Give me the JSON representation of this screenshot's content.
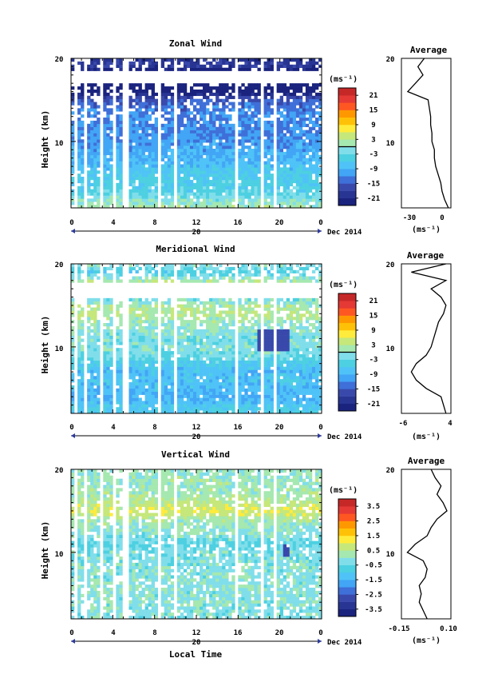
{
  "figure": {
    "x_axis_label": "Local Time",
    "date_label": "Dec 2014",
    "day_label": "20",
    "x_ticks": [
      "0",
      "4",
      "8",
      "12",
      "16",
      "20",
      "0"
    ],
    "y_axis_label": "Height (km)",
    "y_ticks": [
      "10",
      "20"
    ],
    "unit_label": "(ms⁻¹)",
    "avg_title": "Average",
    "colors": [
      "#1a237e",
      "#283593",
      "#3949ab",
      "#3f6fd8",
      "#42a5f5",
      "#4fc3f7",
      "#4dd0e1",
      "#80deea",
      "#a5e8b0",
      "#c6e77a",
      "#ffeb3b",
      "#ffc107",
      "#ff9800",
      "#ff5722",
      "#e53935",
      "#c62828"
    ]
  },
  "chart_data": [
    {
      "type": "heatmap",
      "title": "Zonal Wind",
      "xlabel": "Local Time",
      "ylabel": "Height (km)",
      "xlim": [
        0,
        24
      ],
      "ylim": [
        2,
        20
      ],
      "data_gap_above_km": 17,
      "colorbar": {
        "ticks": [
          "21",
          "15",
          "9",
          "3",
          "-3",
          "-9",
          "-15",
          "-21"
        ],
        "range": [
          -24,
          24
        ],
        "zero_line_value": 0
      },
      "profile_knots": [
        [
          2,
          2
        ],
        [
          4,
          -4
        ],
        [
          6,
          -6
        ],
        [
          8,
          -9
        ],
        [
          10,
          -11
        ],
        [
          11.5,
          -12
        ],
        [
          13,
          -12
        ],
        [
          14,
          -13
        ],
        [
          15,
          -15
        ],
        [
          15.8,
          -22
        ],
        [
          16.5,
          -26
        ],
        [
          17.5,
          -18
        ],
        [
          18.5,
          -24
        ],
        [
          19.2,
          -18
        ],
        [
          20,
          -20
        ]
      ],
      "average_profile": {
        "title": "Average",
        "xticks": [
          "-30",
          "0"
        ],
        "xlim": [
          -35,
          4
        ],
        "ylim": [
          2,
          20
        ],
        "xlabel": "(ms⁻¹)",
        "height_km": [
          2,
          3,
          4,
          5,
          6,
          7,
          8,
          9,
          10,
          11,
          12,
          13,
          14,
          15,
          16,
          17,
          18,
          19,
          20
        ],
        "mean": [
          2,
          -1,
          -3,
          -4,
          -6,
          -8,
          -9,
          -9,
          -11,
          -11,
          -12,
          -12,
          -13,
          -14,
          -30,
          -24,
          -18,
          -22,
          -17
        ]
      }
    },
    {
      "type": "heatmap",
      "title": "Meridional Wind",
      "xlabel": "Local Time",
      "ylabel": "Height (km)",
      "xlim": [
        0,
        24
      ],
      "ylim": [
        2,
        20
      ],
      "data_gap_above_km": 16,
      "colorbar": {
        "ticks": [
          "21",
          "15",
          "9",
          "3",
          "-3",
          "-9",
          "-15",
          "-21"
        ],
        "range": [
          -24,
          24
        ],
        "zero_line_value": 0
      },
      "profile_knots": [
        [
          2,
          -5
        ],
        [
          3,
          -7
        ],
        [
          4,
          -9
        ],
        [
          5,
          -8
        ],
        [
          6,
          -7
        ],
        [
          7,
          -8
        ],
        [
          8,
          -6
        ],
        [
          9,
          -2
        ],
        [
          10,
          -1
        ],
        [
          11,
          -2
        ],
        [
          12,
          0
        ],
        [
          13,
          1
        ],
        [
          14,
          3
        ],
        [
          15,
          2
        ],
        [
          16,
          -3
        ],
        [
          17,
          -1
        ],
        [
          18,
          2
        ],
        [
          19,
          -5
        ],
        [
          20,
          0
        ]
      ],
      "average_profile": {
        "title": "Average",
        "xticks": [
          "-6",
          "4"
        ],
        "xlim": [
          -6,
          4
        ],
        "ylim": [
          2,
          20
        ],
        "xlabel": "(ms⁻¹)",
        "height_km": [
          2,
          3,
          4,
          5,
          6,
          7,
          8,
          9,
          10,
          11,
          12,
          13,
          14,
          15,
          16,
          17,
          18,
          19,
          20
        ],
        "mean": [
          3,
          2.5,
          2,
          -1,
          -3,
          -4,
          -3,
          -1,
          0,
          0.5,
          1,
          1.5,
          2.5,
          3,
          2,
          0,
          3,
          -4,
          3
        ]
      }
    },
    {
      "type": "heatmap",
      "title": "Vertical Wind",
      "xlabel": "Local Time",
      "ylabel": "Height (km)",
      "xlim": [
        0,
        24
      ],
      "ylim": [
        2,
        20
      ],
      "data_gap_above_km": 21,
      "colorbar": {
        "ticks": [
          "3.5",
          "2.5",
          "1.5",
          "0.5",
          "-0.5",
          "-1.5",
          "-2.5",
          "-3.5"
        ],
        "range": [
          -4,
          4
        ],
        "zero_line_value": null
      },
      "profile_knots": [
        [
          2,
          -0.2
        ],
        [
          6,
          -0.1
        ],
        [
          10,
          -0.3
        ],
        [
          11,
          -0.5
        ],
        [
          14,
          0.3
        ],
        [
          15,
          1.0
        ],
        [
          17,
          0.2
        ],
        [
          20,
          0.1
        ]
      ],
      "average_profile": {
        "title": "Average",
        "xticks": [
          "-0.15",
          "0.10"
        ],
        "xlim": [
          -0.15,
          0.1
        ],
        "ylim": [
          2,
          20
        ],
        "xlabel": "(ms⁻¹)",
        "height_km": [
          2,
          3,
          4,
          5,
          6,
          7,
          8,
          9,
          10,
          11,
          12,
          13,
          14,
          15,
          16,
          17,
          18,
          19,
          20
        ],
        "mean": [
          -0.02,
          -0.04,
          -0.06,
          -0.05,
          -0.06,
          -0.03,
          -0.02,
          -0.04,
          -0.12,
          -0.08,
          -0.02,
          0.0,
          0.03,
          0.08,
          0.06,
          0.03,
          0.05,
          0.02,
          0.0
        ]
      }
    }
  ]
}
